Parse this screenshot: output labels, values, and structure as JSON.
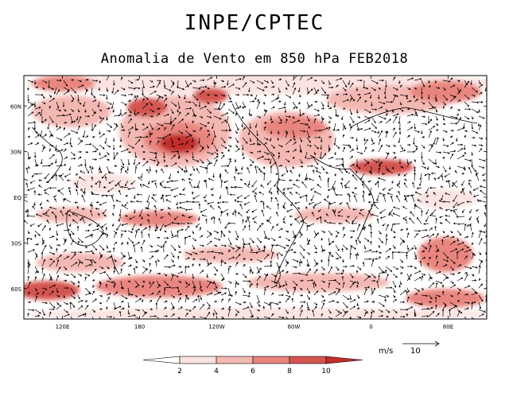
{
  "title": "INPE/CPTEC",
  "subtitle": "Anomalia de Vento em 850 hPa FEB2018",
  "map": {
    "lat_labels": [
      "60N",
      "30N",
      "EQ",
      "30S",
      "60S"
    ],
    "lat_values": [
      60,
      30,
      0,
      -30,
      -60
    ],
    "lon_labels": [
      "120E",
      "180",
      "120W",
      "60W",
      "0",
      "60E"
    ],
    "lon_values": [
      120,
      180,
      240,
      300,
      360,
      420
    ],
    "lon_range": [
      90,
      450
    ],
    "lat_range": [
      -80,
      80
    ]
  },
  "colorbar": {
    "ticks": [
      "2",
      "4",
      "6",
      "8",
      "10"
    ],
    "colors": [
      "#fbe3e1",
      "#f4b8b3",
      "#e9857f",
      "#d45550",
      "#c32d2a"
    ]
  },
  "vector_key": {
    "units": "m/s",
    "value": "10"
  }
}
